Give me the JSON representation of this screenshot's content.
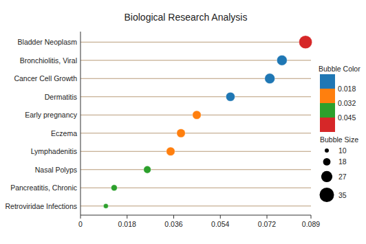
{
  "chart_data": {
    "type": "bubble",
    "title": "Biological Research Analysis",
    "orientation": "horizontal",
    "categories": [
      "Bladder Neoplasm",
      "Bronchiolitis, Viral",
      "Cancer Cell Growth",
      "Dermatitis",
      "Early pregnancy",
      "Eczema",
      "Lymphadenitis",
      "Nasal Polyps",
      "Pancreatitis, Chronic",
      "Retroviridae Infections"
    ],
    "values": [
      0.0869,
      0.0778,
      0.0731,
      0.0579,
      0.0449,
      0.0388,
      0.0348,
      0.0258,
      0.013,
      0.0098
    ],
    "sizes": [
      32,
      25,
      25,
      22,
      21,
      21,
      21,
      18,
      15,
      12
    ],
    "color_values": [
      0.052,
      0.012,
      0.014,
      0.015,
      0.025,
      0.026,
      0.027,
      0.038,
      0.04,
      0.042
    ],
    "xlim": [
      0,
      0.089
    ],
    "xticks": [
      0,
      0.018,
      0.036,
      0.054,
      0.072,
      0.089
    ],
    "color_legend_title": "Bubble Color",
    "color_ticks": [
      0.018,
      0.032,
      0.045
    ],
    "colors": [
      "#1f77b4",
      "#ff7f0e",
      "#2ca02c",
      "#d62728"
    ],
    "size_legend_title": "Bubble Size",
    "size_ticks": [
      10,
      18,
      27,
      35
    ]
  }
}
